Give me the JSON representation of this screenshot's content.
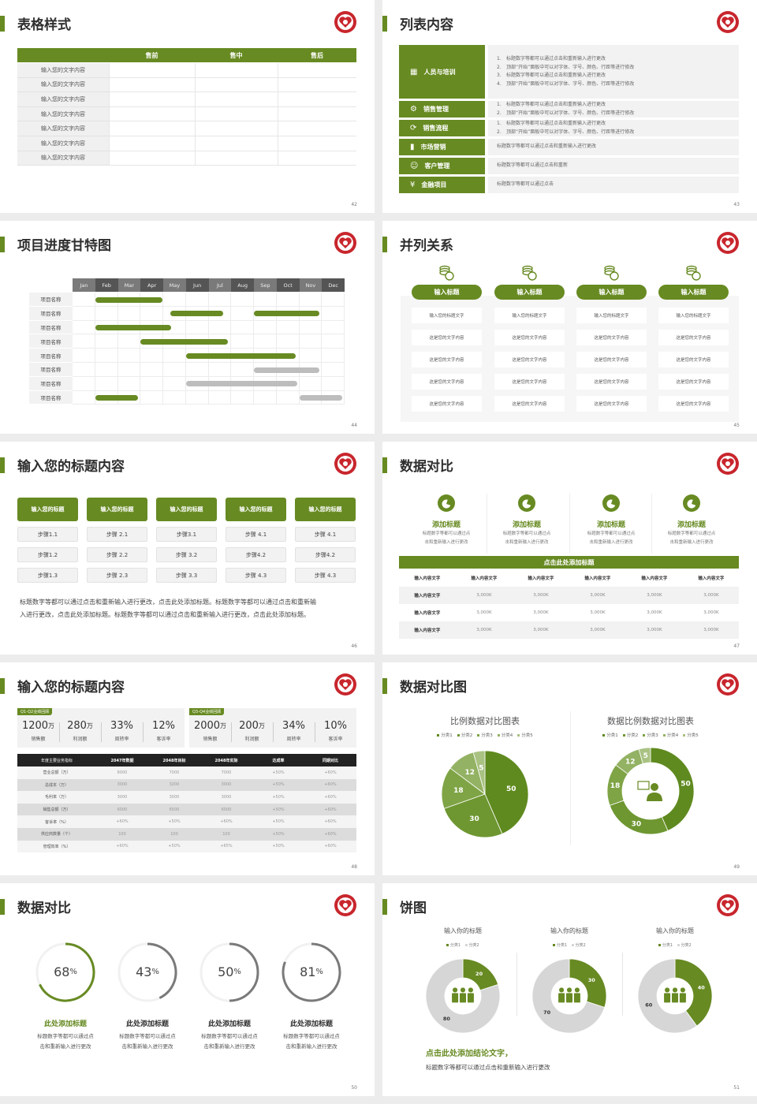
{
  "colors": {
    "green": "#678a22",
    "green_dark": "#5c7e1c",
    "gray_bar": "#bdbdbd",
    "logo_red": "#c8262d",
    "table_dark": "#222222"
  },
  "slides": [
    {
      "page": "42",
      "title": "表格样式",
      "table": {
        "columns": [
          "",
          "售前",
          "售中",
          "售后"
        ],
        "rows": [
          "输入您的文字内容",
          "输入您的文字内容",
          "输入您的文字内容",
          "输入您的文字内容",
          "输入您的文字内容",
          "输入您的文字内容",
          "输入您的文字内容"
        ]
      }
    },
    {
      "page": "43",
      "title": "列表内容",
      "items": [
        {
          "label": "人员与培训",
          "icon": "team-training-icon",
          "numbered": true,
          "lines": [
            "标题数字等都可以通过点击和重新输入进行更改",
            "顶部“开始”面板中可以对字体、字号、颜色、行距等进行修改",
            "标题数字等都可以通过点击和重新输入进行更改",
            "顶部“开始”面板中可以对字体、字号、颜色、行距等进行修改"
          ]
        },
        {
          "label": "销售管理",
          "icon": "user-gear-icon",
          "numbered": true,
          "lines": [
            "标题数字等都可以通过点击和重新输入进行更改",
            "顶部“开始”面板中可以对字体、字号、颜色、行距等进行修改"
          ]
        },
        {
          "label": "销售流程",
          "icon": "cycle-icon",
          "numbered": true,
          "lines": [
            "标题数字等都可以通过点击和重新输入进行更改",
            "顶部“开始”面板中可以对字体、字号、颜色、行距等进行修改"
          ]
        },
        {
          "label": "市场营销",
          "icon": "bar-chart-icon",
          "numbered": false,
          "lines": [
            "标题数字等都可以通过点击和重新输入进行更改"
          ]
        },
        {
          "label": "客户管理",
          "icon": "users-icon",
          "numbered": false,
          "lines": [
            "标题数字等都可以通过点击和重新"
          ]
        },
        {
          "label": "金融项目",
          "icon": "money-hand-icon",
          "numbered": false,
          "lines": [
            "标题数字等都可以通过点击"
          ]
        }
      ]
    },
    {
      "page": "44",
      "title": "项目进度甘特图",
      "gantt": {
        "months": [
          "Jan",
          "Feb",
          "Mar",
          "Apr",
          "May",
          "Jun",
          "Jul",
          "Aug",
          "Sep",
          "Oct",
          "Nov",
          "Dec"
        ],
        "rows": [
          {
            "label": "项目名称",
            "bars": [
              {
                "start": 1.0,
                "end": 3.95,
                "status": "done"
              }
            ]
          },
          {
            "label": "项目名称",
            "bars": [
              {
                "start": 4.3,
                "end": 6.65,
                "status": "done"
              },
              {
                "start": 8.0,
                "end": 10.9,
                "status": "done"
              }
            ]
          },
          {
            "label": "项目名称",
            "bars": [
              {
                "start": 1.0,
                "end": 4.35,
                "status": "done"
              }
            ]
          },
          {
            "label": "项目名称",
            "bars": [
              {
                "start": 3.0,
                "end": 6.85,
                "status": "done"
              }
            ]
          },
          {
            "label": "项目名称",
            "bars": [
              {
                "start": 5.0,
                "end": 9.85,
                "status": "done"
              }
            ]
          },
          {
            "label": "项目名称",
            "bars": [
              {
                "start": 8.0,
                "end": 10.9,
                "status": "planned"
              }
            ]
          },
          {
            "label": "项目名称",
            "bars": [
              {
                "start": 5.0,
                "end": 9.9,
                "status": "planned"
              }
            ]
          },
          {
            "label": "项目名称",
            "bars": [
              {
                "start": 1.0,
                "end": 2.9,
                "status": "done"
              },
              {
                "start": 10.0,
                "end": 11.9,
                "status": "planned"
              }
            ]
          }
        ]
      }
    },
    {
      "page": "45",
      "title": "并列关系",
      "columns": [
        {
          "title": "输入标题",
          "icon": "coins-icon",
          "cells": [
            "输入您的标题文字",
            "这是您的文字内容",
            "这是您的文字内容",
            "这是您的文字内容",
            "这是您的文字内容"
          ]
        },
        {
          "title": "输入标题",
          "icon": "coins-icon",
          "cells": [
            "输入您的标题文字",
            "这是您的文字内容",
            "这是您的文字内容",
            "这是您的文字内容",
            "这是您的文字内容"
          ]
        },
        {
          "title": "输入标题",
          "icon": "coins-icon",
          "cells": [
            "输入您的标题文字",
            "这是您的文字内容",
            "这是您的文字内容",
            "这是您的文字内容",
            "这是您的文字内容"
          ]
        },
        {
          "title": "输入标题",
          "icon": "coins-icon",
          "cells": [
            "输入您的标题文字",
            "这是您的文字内容",
            "这是您的文字内容",
            "这是您的文字内容",
            "这是您的文字内容"
          ]
        }
      ]
    },
    {
      "page": "46",
      "title": "输入您的标题内容",
      "columns": [
        {
          "title": "输入您的标题",
          "steps": [
            "步骤1.1",
            "步骤1.2",
            "步骤1.3"
          ]
        },
        {
          "title": "输入您的标题",
          "steps": [
            "步骤 2.1",
            "步骤 2.2",
            "步骤 2.3"
          ]
        },
        {
          "title": "输入您的标题",
          "steps": [
            "步骤3.1",
            "步骤 3.2",
            "步骤 3.3"
          ]
        },
        {
          "title": "输入您的标题",
          "steps": [
            "步骤 4.1",
            "步骤4.2",
            "步骤 4.3"
          ]
        },
        {
          "title": "输入您的标题",
          "steps": [
            "步骤 4.1",
            "步骤4.2",
            "步骤 4.3"
          ]
        }
      ],
      "paragraph": [
        "标题数字等都可以通过点击和重新输入进行更改，点击此处添加标题。标题数字等都可以通过点击和重新输",
        "入进行更改，点击此处添加标题。标题数字等都可以通过点击和重新输入进行更改，点击此处添加标题。"
      ]
    },
    {
      "page": "47",
      "title": "数据对比",
      "features": [
        {
          "title": "添加标题",
          "icon": "pie-icon",
          "lines": [
            "标题数字等都可以通过点",
            "击和重新输入进行更改"
          ]
        },
        {
          "title": "添加标题",
          "icon": "pie-icon",
          "lines": [
            "标题数字等都可以通过点",
            "击和重新输入进行更改"
          ]
        },
        {
          "title": "添加标题",
          "icon": "pie-icon",
          "lines": [
            "标题数字等都可以通过点",
            "击和重新输入进行更改"
          ]
        },
        {
          "title": "添加标题",
          "icon": "pie-icon",
          "lines": [
            "标题数字等都可以通过点",
            "击和重新输入进行更改"
          ]
        }
      ],
      "banner": "点击此处添加标题",
      "table": {
        "header": [
          "输入内容文字",
          "输入内容文字",
          "输入内容文字",
          "输入内容文字",
          "输入内容文字",
          "输入内容文字"
        ],
        "rows": [
          [
            "输入内容文字",
            "3,000K",
            "3,000K",
            "3,000K",
            "3,000K",
            "3,000K"
          ],
          [
            "输入内容文字",
            "3,000K",
            "3,000K",
            "3,000K",
            "3,000K",
            "3,000K"
          ],
          [
            "输入内容文字",
            "3,000K",
            "3,000K",
            "3,000K",
            "3,000K",
            "3,000K"
          ]
        ]
      }
    },
    {
      "page": "48",
      "title": "输入您的标题内容",
      "kpi_groups": [
        {
          "tag": "Q1-Q2业绩回顾",
          "items": [
            {
              "value": "1200",
              "unit": "万",
              "label": "销售额"
            },
            {
              "value": "280",
              "unit": "万",
              "label": "利润额"
            },
            {
              "value": "33%",
              "unit": "",
              "label": "周转率"
            },
            {
              "value": "12%",
              "unit": "",
              "label": "客诉率"
            }
          ]
        },
        {
          "tag": "Q3-Q4业绩回顾",
          "items": [
            {
              "value": "2000",
              "unit": "万",
              "label": "销售额"
            },
            {
              "value": "200",
              "unit": "万",
              "label": "利润额"
            },
            {
              "value": "34%",
              "unit": "",
              "label": "周转率"
            },
            {
              "value": "10%",
              "unit": "",
              "label": "客诉率"
            }
          ]
        }
      ],
      "table": {
        "header": [
          "年度主要业务指标",
          "2047年数据",
          "2048年目标",
          "2048年实际",
          "达成率",
          "同期对比"
        ],
        "rows": [
          [
            "营业总额（万）",
            "6000",
            "7000",
            "7000",
            "+50%",
            "+60%"
          ],
          [
            "总成本（万）",
            "3000",
            "3200",
            "3000",
            "+50%",
            "+60%"
          ],
          [
            "毛利率（万）",
            "3000",
            "3000",
            "3000",
            "+50%",
            "+60%"
          ],
          [
            "销售总额（万）",
            "6000",
            "6500",
            "6000",
            "+50%",
            "+60%"
          ],
          [
            "客诉率（%）",
            "+60%",
            "+50%",
            "+60%",
            "+50%",
            "+60%"
          ],
          [
            "供应商数量（个）",
            "100",
            "100",
            "100",
            "+50%",
            "+60%"
          ],
          [
            "管理效率（%）",
            "+60%",
            "+50%",
            "+65%",
            "+50%",
            "+60%"
          ]
        ]
      }
    },
    {
      "page": "49",
      "title": "数据对比图",
      "charts": [
        {
          "type": "pie",
          "title": "比例数据对比图表",
          "categories": [
            "分类1",
            "分类2",
            "分类3",
            "分类4",
            "分类5"
          ],
          "values": [
            50,
            30,
            18,
            12,
            5
          ],
          "colors": [
            "#5f8a1f",
            "#6e9731",
            "#7fa446",
            "#93b263",
            "#a9c282"
          ]
        },
        {
          "type": "donut",
          "title": "数据比例数据对比图表",
          "categories": [
            "分类1",
            "分类2",
            "分类3",
            "分类4",
            "分类5"
          ],
          "values": [
            50,
            30,
            18,
            12,
            5
          ],
          "colors": [
            "#5f8a1f",
            "#6e9731",
            "#7fa446",
            "#93b263",
            "#a9c282"
          ],
          "center_icon": "customer-service-icon"
        }
      ]
    },
    {
      "page": "50",
      "title": "数据对比",
      "rings": [
        {
          "value": 68,
          "unit": "%",
          "title": "此处添加标题",
          "lines": [
            "标题数字等都可以通过点",
            "击和重新输入进行更改"
          ],
          "color": "#678a22",
          "highlight": true
        },
        {
          "value": 43,
          "unit": "%",
          "title": "此处添加标题",
          "lines": [
            "标题数字等都可以通过点",
            "击和重新输入进行更改"
          ],
          "color": "#7a7a7a",
          "highlight": false
        },
        {
          "value": 50,
          "unit": "%",
          "title": "此处添加标题",
          "lines": [
            "标题数字等都可以通过点",
            "击和重新输入进行更改"
          ],
          "color": "#7a7a7a",
          "highlight": false
        },
        {
          "value": 81,
          "unit": "%",
          "title": "此处添加标题",
          "lines": [
            "标题数字等都可以通过点",
            "击和重新输入进行更改"
          ],
          "color": "#7a7a7a",
          "highlight": false
        }
      ]
    },
    {
      "page": "51",
      "title": "饼图",
      "donuts": [
        {
          "title": "输入你的标题",
          "categories": [
            "分类1",
            "分类2"
          ],
          "values": [
            20,
            80
          ],
          "center_icon": "team-icon"
        },
        {
          "title": "输入你的标题",
          "categories": [
            "分类1",
            "分类2"
          ],
          "values": [
            30,
            70
          ],
          "center_icon": "team-icon"
        },
        {
          "title": "输入你的标题",
          "categories": [
            "分类1",
            "分类2"
          ],
          "values": [
            40,
            60
          ],
          "center_icon": "team-icon"
        }
      ],
      "conclusion": "点击此处添加结论文字，",
      "body": "标题数字等都可以通过点击和重新输入进行更改"
    }
  ]
}
